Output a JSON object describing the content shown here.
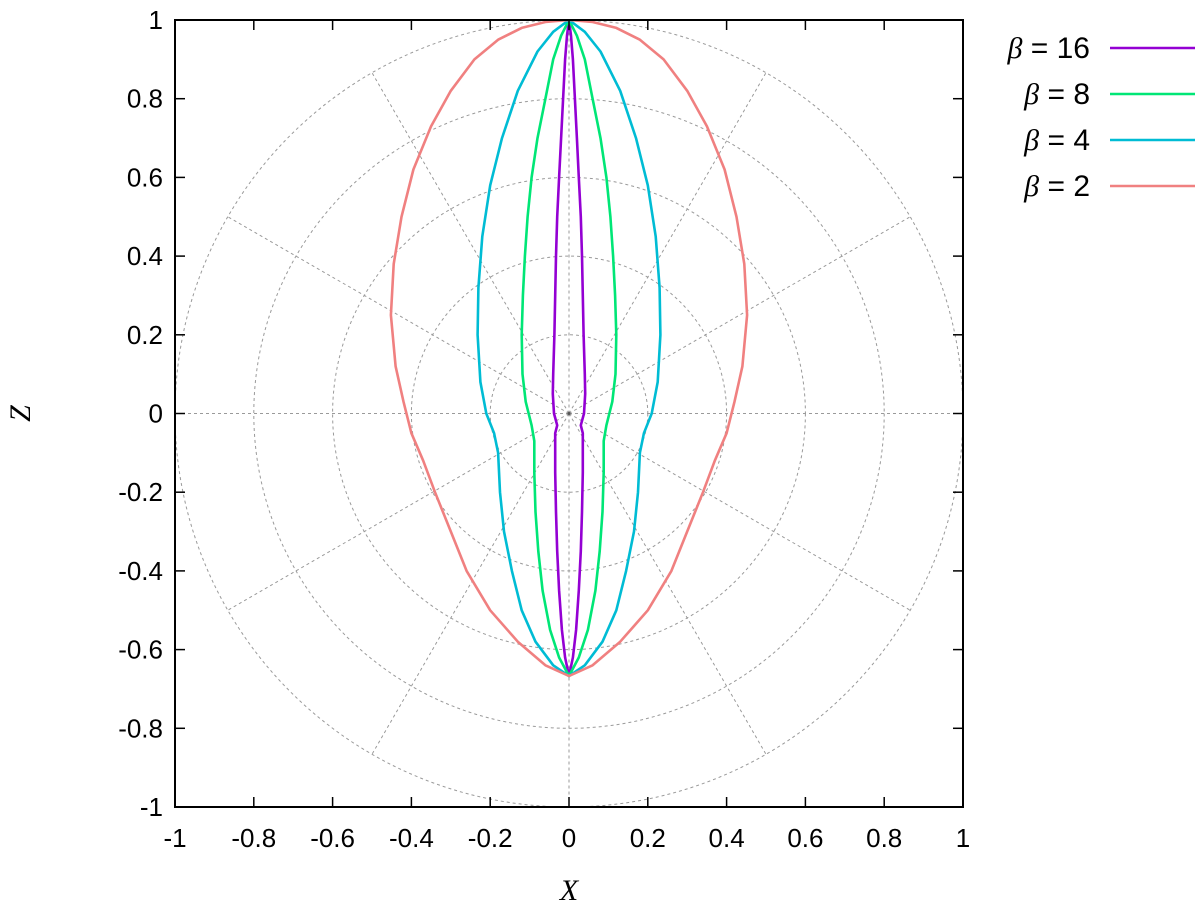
{
  "chart_data": {
    "type": "line",
    "xlabel": "X",
    "ylabel": "Z",
    "xlim": [
      -1,
      1
    ],
    "ylim": [
      -1,
      1
    ],
    "x_ticks": [
      "-1",
      "-0.8",
      "-0.6",
      "-0.4",
      "-0.2",
      "0",
      "0.2",
      "0.4",
      "0.6",
      "0.8",
      "1"
    ],
    "y_ticks": [
      "1",
      "0.8",
      "0.6",
      "0.4",
      "0.2",
      "0",
      "-0.2",
      "-0.4",
      "-0.6",
      "-0.8",
      "-1"
    ],
    "grid": "polar, dashed",
    "grid_radii": [
      0.2,
      0.4,
      0.6,
      0.8,
      1.0
    ],
    "grid_spoke_angle_step_deg": 30,
    "legend_position": "outside-top-right",
    "series": [
      {
        "name": "β = 16",
        "legend_symbol": "β",
        "legend_value": "= 16",
        "color": "#9400d3",
        "points": [
          [
            0.0,
            1.0
          ],
          [
            0.005,
            0.96
          ],
          [
            0.01,
            0.9
          ],
          [
            0.015,
            0.8
          ],
          [
            0.02,
            0.7
          ],
          [
            0.025,
            0.6
          ],
          [
            0.03,
            0.5
          ],
          [
            0.033,
            0.4
          ],
          [
            0.035,
            0.3
          ],
          [
            0.037,
            0.2
          ],
          [
            0.04,
            0.1
          ],
          [
            0.041,
            0.05
          ],
          [
            0.038,
            0.0
          ],
          [
            0.03,
            -0.03
          ],
          [
            0.035,
            -0.05
          ],
          [
            0.035,
            -0.15
          ],
          [
            0.033,
            -0.25
          ],
          [
            0.03,
            -0.35
          ],
          [
            0.025,
            -0.45
          ],
          [
            0.018,
            -0.55
          ],
          [
            0.01,
            -0.62
          ],
          [
            0.0,
            -0.667
          ]
        ]
      },
      {
        "name": "β = 8",
        "legend_symbol": "β",
        "legend_value": "= 8",
        "color": "#00e676",
        "points": [
          [
            0.0,
            1.0
          ],
          [
            0.02,
            0.96
          ],
          [
            0.04,
            0.9
          ],
          [
            0.06,
            0.8
          ],
          [
            0.08,
            0.7
          ],
          [
            0.095,
            0.6
          ],
          [
            0.105,
            0.5
          ],
          [
            0.112,
            0.4
          ],
          [
            0.117,
            0.3
          ],
          [
            0.12,
            0.2
          ],
          [
            0.118,
            0.1
          ],
          [
            0.11,
            0.03
          ],
          [
            0.095,
            -0.03
          ],
          [
            0.088,
            -0.07
          ],
          [
            0.088,
            -0.15
          ],
          [
            0.085,
            -0.25
          ],
          [
            0.078,
            -0.35
          ],
          [
            0.067,
            -0.45
          ],
          [
            0.048,
            -0.55
          ],
          [
            0.025,
            -0.62
          ],
          [
            0.0,
            -0.667
          ]
        ]
      },
      {
        "name": "β = 4",
        "legend_symbol": "β",
        "legend_value": "= 4",
        "color": "#00bcd4",
        "points": [
          [
            0.0,
            1.0
          ],
          [
            0.04,
            0.97
          ],
          [
            0.08,
            0.92
          ],
          [
            0.13,
            0.82
          ],
          [
            0.17,
            0.7
          ],
          [
            0.2,
            0.58
          ],
          [
            0.22,
            0.45
          ],
          [
            0.23,
            0.32
          ],
          [
            0.232,
            0.2
          ],
          [
            0.225,
            0.08
          ],
          [
            0.21,
            0.0
          ],
          [
            0.19,
            -0.05
          ],
          [
            0.18,
            -0.1
          ],
          [
            0.175,
            -0.2
          ],
          [
            0.165,
            -0.3
          ],
          [
            0.145,
            -0.4
          ],
          [
            0.12,
            -0.5
          ],
          [
            0.085,
            -0.58
          ],
          [
            0.04,
            -0.64
          ],
          [
            0.0,
            -0.667
          ]
        ]
      },
      {
        "name": "β = 2",
        "legend_symbol": "β",
        "legend_value": "= 2",
        "color": "#f08080",
        "points": [
          [
            0.0,
            1.0
          ],
          [
            0.06,
            0.995
          ],
          [
            0.12,
            0.98
          ],
          [
            0.18,
            0.95
          ],
          [
            0.24,
            0.9
          ],
          [
            0.3,
            0.82
          ],
          [
            0.35,
            0.73
          ],
          [
            0.395,
            0.62
          ],
          [
            0.425,
            0.5
          ],
          [
            0.445,
            0.38
          ],
          [
            0.452,
            0.25
          ],
          [
            0.44,
            0.12
          ],
          [
            0.42,
            0.03
          ],
          [
            0.4,
            -0.05
          ],
          [
            0.37,
            -0.12
          ],
          [
            0.34,
            -0.2
          ],
          [
            0.3,
            -0.3
          ],
          [
            0.26,
            -0.4
          ],
          [
            0.2,
            -0.5
          ],
          [
            0.13,
            -0.58
          ],
          [
            0.06,
            -0.64
          ],
          [
            0.0,
            -0.667
          ]
        ]
      }
    ]
  }
}
